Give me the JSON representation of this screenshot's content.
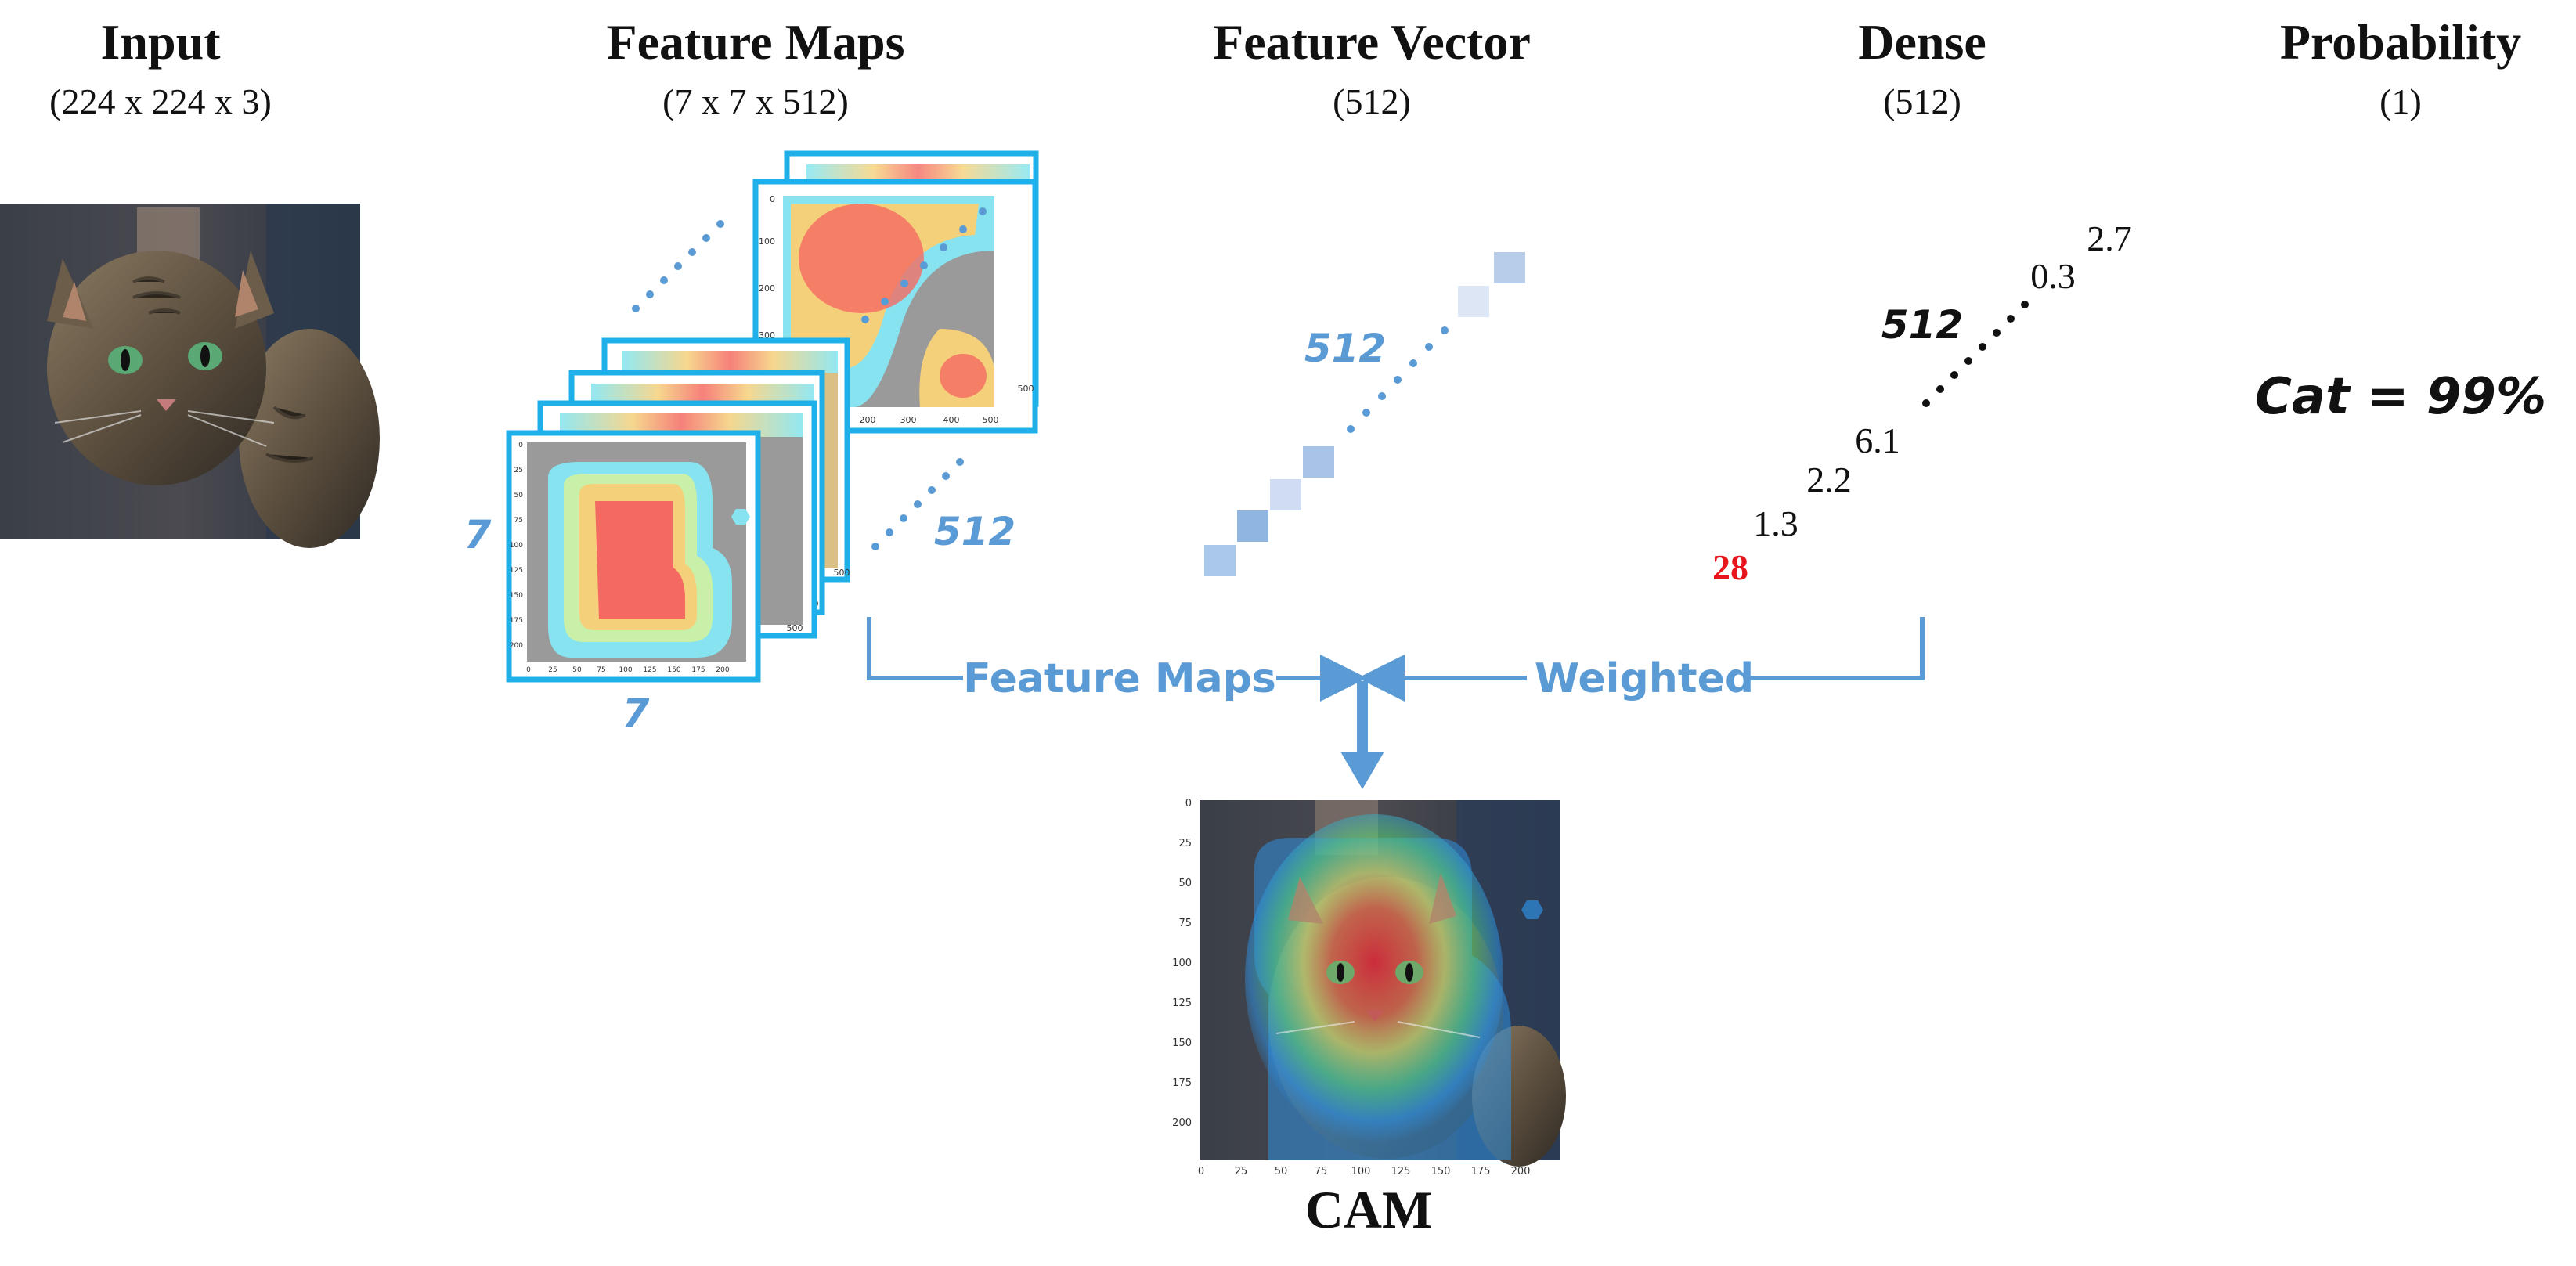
{
  "headers": {
    "input": {
      "title": "Input",
      "dims": "(224 x 224 x 3)"
    },
    "feature_maps": {
      "title": "Feature Maps",
      "dims": "(7 x 7 x 512)"
    },
    "feature_vector": {
      "title": "Feature Vector",
      "dims": "(512)"
    },
    "dense": {
      "title": "Dense",
      "dims": "(512)"
    },
    "probability": {
      "title": "Probability",
      "dims": "(1)"
    }
  },
  "feature_maps": {
    "height_label": "7",
    "width_label": "7",
    "depth_label": "512",
    "front_map_x_ticks": [
      "0",
      "25",
      "50",
      "75",
      "100",
      "125",
      "150",
      "175",
      "200"
    ],
    "front_map_y_ticks": [
      "0",
      "25",
      "50",
      "75",
      "100",
      "125",
      "150",
      "175",
      "200"
    ],
    "back_map_x_ticks": [
      "200",
      "300",
      "400",
      "500"
    ],
    "back_map_y_ticks": [
      "0",
      "100",
      "200",
      "300"
    ],
    "side_tick": "500"
  },
  "feature_vector": {
    "size_label": "512"
  },
  "dense": {
    "size_label": "512",
    "values": [
      "28",
      "1.3",
      "2.2",
      "6.1",
      "0.3",
      "2.7"
    ],
    "highlight_color": "#e8141c"
  },
  "probability": {
    "result": "Cat = 99%"
  },
  "flow": {
    "left_label": "Feature Maps",
    "right_label": "Weighted",
    "arrow_color": "#5b9bd5"
  },
  "cam": {
    "label": "CAM",
    "x_ticks": [
      "0",
      "25",
      "50",
      "75",
      "100",
      "125",
      "150",
      "175",
      "200"
    ],
    "y_ticks": [
      "0",
      "25",
      "50",
      "75",
      "100",
      "125",
      "150",
      "175",
      "200"
    ]
  },
  "colors": {
    "accent_blue": "#5b9bd5",
    "frame_cyan": "#1fb0ea",
    "heat_red": "#f0595e",
    "heat_cyan": "#7fe4f0",
    "text": "#111111"
  }
}
